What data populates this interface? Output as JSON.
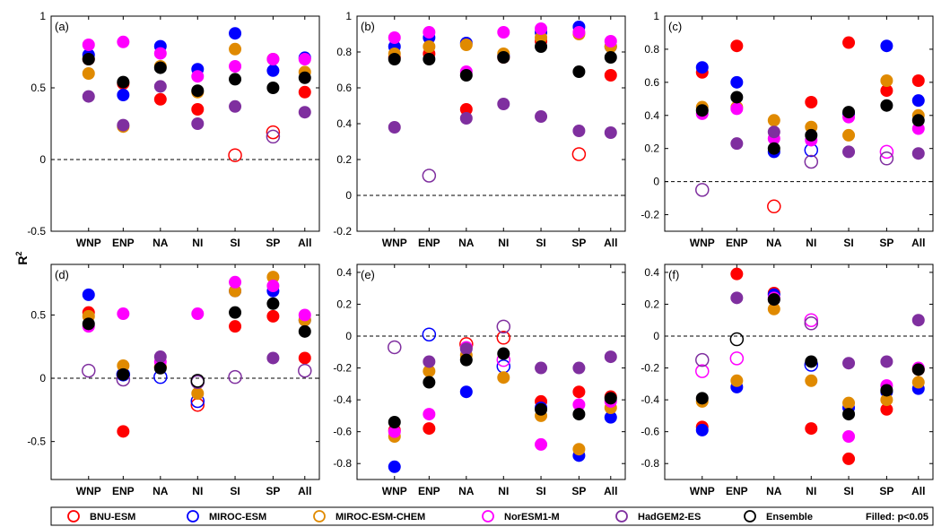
{
  "ylabel": "R",
  "ylabel_sup": "2",
  "legend": {
    "entries": [
      {
        "name": "BNU-ESM",
        "color": "#ff0000"
      },
      {
        "name": "MIROC-ESM",
        "color": "#0000ff"
      },
      {
        "name": "MIROC-ESM-CHEM",
        "color": "#e08a00"
      },
      {
        "name": "NorESM1-M",
        "color": "#ff00ff"
      },
      {
        "name": "HadGEM2-ES",
        "color": "#7f2f9f"
      },
      {
        "name": "Ensemble",
        "color": "#000000"
      }
    ],
    "note": "Filled: p<0.05",
    "placement": "bottom"
  },
  "chart_data": [
    {
      "panel": "(a)",
      "type": "scatter",
      "categories": [
        "WNP",
        "ENP",
        "NA",
        "NI",
        "SI",
        "SP",
        "All"
      ],
      "ylim": [
        -0.5,
        1
      ],
      "yticks": [
        -0.5,
        0,
        0.5,
        1
      ],
      "ytick_labels": [
        "-0.5",
        "0",
        "0.5",
        "1"
      ],
      "zero_line": true,
      "series": [
        {
          "name": "BNU-ESM",
          "values": [
            0.7,
            0.53,
            0.42,
            0.35,
            0.03,
            0.19,
            0.47
          ],
          "filled": [
            true,
            true,
            true,
            true,
            false,
            false,
            true
          ]
        },
        {
          "name": "MIROC-ESM",
          "values": [
            0.73,
            0.45,
            0.79,
            0.63,
            0.88,
            0.62,
            0.71
          ],
          "filled": [
            true,
            true,
            true,
            true,
            true,
            true,
            true
          ]
        },
        {
          "name": "MIROC-ESM-CHEM",
          "values": [
            0.6,
            0.23,
            0.65,
            0.47,
            0.77,
            0.7,
            0.61
          ],
          "filled": [
            true,
            true,
            true,
            true,
            true,
            true,
            true
          ]
        },
        {
          "name": "NorESM1-M",
          "values": [
            0.8,
            0.82,
            0.74,
            0.58,
            0.65,
            0.7,
            0.7
          ],
          "filled": [
            true,
            true,
            true,
            true,
            true,
            true,
            true
          ]
        },
        {
          "name": "HadGEM2-ES",
          "values": [
            0.44,
            0.24,
            0.51,
            0.25,
            0.37,
            0.16,
            0.33
          ],
          "filled": [
            true,
            true,
            true,
            true,
            true,
            false,
            true
          ]
        },
        {
          "name": "Ensemble",
          "values": [
            0.7,
            0.54,
            0.64,
            0.48,
            0.56,
            0.5,
            0.57
          ],
          "filled": [
            true,
            true,
            true,
            true,
            true,
            true,
            true
          ]
        }
      ]
    },
    {
      "panel": "(b)",
      "type": "scatter",
      "categories": [
        "WNP",
        "ENP",
        "NA",
        "NI",
        "SI",
        "SP",
        "All"
      ],
      "ylim": [
        -0.2,
        1
      ],
      "yticks": [
        -0.2,
        0,
        0.2,
        0.4,
        0.6,
        0.8,
        1
      ],
      "ytick_labels": [
        "-0.2",
        "0",
        "0.2",
        "0.4",
        "0.6",
        "0.8",
        "1"
      ],
      "zero_line": true,
      "series": [
        {
          "name": "BNU-ESM",
          "values": [
            0.77,
            0.79,
            0.48,
            0.77,
            0.86,
            0.23,
            0.67
          ],
          "filled": [
            true,
            true,
            true,
            true,
            true,
            false,
            true
          ]
        },
        {
          "name": "MIROC-ESM",
          "values": [
            0.83,
            0.88,
            0.85,
            0.78,
            0.91,
            0.94,
            0.83
          ],
          "filled": [
            true,
            true,
            true,
            true,
            true,
            true,
            true
          ]
        },
        {
          "name": "MIROC-ESM-CHEM",
          "values": [
            0.79,
            0.83,
            0.84,
            0.79,
            0.88,
            0.9,
            0.83
          ],
          "filled": [
            true,
            true,
            true,
            true,
            true,
            true,
            true
          ]
        },
        {
          "name": "NorESM1-M",
          "values": [
            0.88,
            0.91,
            0.69,
            0.91,
            0.93,
            0.91,
            0.86
          ],
          "filled": [
            true,
            true,
            true,
            true,
            true,
            true,
            true
          ]
        },
        {
          "name": "HadGEM2-ES",
          "values": [
            0.38,
            0.11,
            0.43,
            0.51,
            0.44,
            0.36,
            0.35
          ],
          "filled": [
            true,
            false,
            true,
            true,
            true,
            true,
            true
          ]
        },
        {
          "name": "Ensemble",
          "values": [
            0.76,
            0.76,
            0.67,
            0.77,
            0.83,
            0.69,
            0.77
          ],
          "filled": [
            true,
            true,
            true,
            true,
            true,
            true,
            true
          ]
        }
      ]
    },
    {
      "panel": "(c)",
      "type": "scatter",
      "categories": [
        "WNP",
        "ENP",
        "NA",
        "NI",
        "SI",
        "SP",
        "All"
      ],
      "ylim": [
        -0.3,
        1
      ],
      "yticks": [
        -0.2,
        0,
        0.2,
        0.4,
        0.6,
        0.8,
        1
      ],
      "ytick_labels": [
        "-0.2",
        "0",
        "0.2",
        "0.4",
        "0.6",
        "0.8",
        "1"
      ],
      "zero_line": true,
      "series": [
        {
          "name": "BNU-ESM",
          "values": [
            0.66,
            0.82,
            -0.15,
            0.48,
            0.84,
            0.55,
            0.61
          ],
          "filled": [
            true,
            true,
            false,
            true,
            true,
            true,
            true
          ]
        },
        {
          "name": "MIROC-ESM",
          "values": [
            0.69,
            0.6,
            0.18,
            0.19,
            0.41,
            0.82,
            0.49
          ],
          "filled": [
            true,
            true,
            true,
            false,
            true,
            true,
            true
          ]
        },
        {
          "name": "MIROC-ESM-CHEM",
          "values": [
            0.45,
            0.45,
            0.37,
            0.33,
            0.28,
            0.61,
            0.4
          ],
          "filled": [
            true,
            true,
            true,
            true,
            true,
            true,
            true
          ]
        },
        {
          "name": "NorESM1-M",
          "values": [
            0.41,
            0.44,
            0.26,
            0.25,
            0.39,
            0.18,
            0.32
          ],
          "filled": [
            true,
            true,
            true,
            true,
            true,
            false,
            true
          ]
        },
        {
          "name": "HadGEM2-ES",
          "values": [
            -0.05,
            0.23,
            0.3,
            0.12,
            0.18,
            0.14,
            0.17
          ],
          "filled": [
            false,
            true,
            true,
            false,
            true,
            false,
            true
          ]
        },
        {
          "name": "Ensemble",
          "values": [
            0.43,
            0.51,
            0.2,
            0.28,
            0.42,
            0.46,
            0.37
          ],
          "filled": [
            true,
            true,
            true,
            true,
            true,
            true,
            true
          ]
        }
      ]
    },
    {
      "panel": "(d)",
      "type": "scatter",
      "categories": [
        "WNP",
        "ENP",
        "NA",
        "NI",
        "SI",
        "SP",
        "All"
      ],
      "ylim": [
        -0.8,
        0.9
      ],
      "yticks": [
        -0.5,
        0,
        0.5
      ],
      "ytick_labels": [
        "-0.5",
        "0",
        "0.5"
      ],
      "zero_line": true,
      "series": [
        {
          "name": "BNU-ESM",
          "values": [
            0.52,
            -0.42,
            0.09,
            -0.21,
            0.41,
            0.49,
            0.16
          ],
          "filled": [
            true,
            true,
            true,
            false,
            true,
            true,
            true
          ]
        },
        {
          "name": "MIROC-ESM",
          "values": [
            0.66,
            0.03,
            0.01,
            -0.18,
            0.69,
            0.69,
            0.46
          ],
          "filled": [
            true,
            false,
            false,
            false,
            true,
            true,
            true
          ]
        },
        {
          "name": "MIROC-ESM-CHEM",
          "values": [
            0.49,
            0.1,
            0.09,
            -0.12,
            0.69,
            0.8,
            0.46
          ],
          "filled": [
            true,
            true,
            true,
            true,
            true,
            true,
            true
          ]
        },
        {
          "name": "NorESM1-M",
          "values": [
            0.41,
            0.51,
            0.13,
            0.51,
            0.76,
            0.73,
            0.5
          ],
          "filled": [
            true,
            true,
            true,
            true,
            true,
            true,
            true
          ]
        },
        {
          "name": "HadGEM2-ES",
          "values": [
            0.06,
            -0.01,
            0.17,
            -0.03,
            0.01,
            0.16,
            0.06
          ],
          "filled": [
            false,
            false,
            true,
            false,
            false,
            true,
            false
          ]
        },
        {
          "name": "Ensemble",
          "values": [
            0.43,
            0.03,
            0.08,
            -0.02,
            0.52,
            0.59,
            0.37
          ],
          "filled": [
            true,
            true,
            true,
            false,
            true,
            true,
            true
          ]
        }
      ]
    },
    {
      "panel": "(e)",
      "type": "scatter",
      "categories": [
        "WNP",
        "ENP",
        "NA",
        "NI",
        "SI",
        "SP",
        "All"
      ],
      "ylim": [
        -0.9,
        0.45
      ],
      "yticks": [
        -0.8,
        -0.6,
        -0.4,
        -0.2,
        0,
        0.2,
        0.4
      ],
      "ytick_labels": [
        "-0.8",
        "-0.6",
        "-0.4",
        "-0.2",
        "0",
        "0.2",
        "0.4"
      ],
      "zero_line": true,
      "series": [
        {
          "name": "BNU-ESM",
          "values": [
            -0.59,
            -0.58,
            -0.05,
            -0.01,
            -0.41,
            -0.35,
            -0.38
          ],
          "filled": [
            true,
            true,
            false,
            false,
            true,
            true,
            true
          ]
        },
        {
          "name": "MIROC-ESM",
          "values": [
            -0.82,
            0.01,
            -0.35,
            -0.19,
            -0.45,
            -0.75,
            -0.51
          ],
          "filled": [
            true,
            false,
            true,
            false,
            true,
            true,
            true
          ]
        },
        {
          "name": "MIROC-ESM-CHEM",
          "values": [
            -0.63,
            -0.22,
            -0.12,
            -0.26,
            -0.5,
            -0.71,
            -0.45
          ],
          "filled": [
            true,
            true,
            true,
            true,
            true,
            true,
            true
          ]
        },
        {
          "name": "NorESM1-M",
          "values": [
            -0.6,
            -0.49,
            -0.07,
            -0.15,
            -0.68,
            -0.43,
            -0.41
          ],
          "filled": [
            true,
            true,
            true,
            false,
            true,
            true,
            true
          ]
        },
        {
          "name": "HadGEM2-ES",
          "values": [
            -0.07,
            -0.16,
            -0.08,
            0.06,
            -0.2,
            -0.2,
            -0.13
          ],
          "filled": [
            false,
            true,
            true,
            false,
            true,
            true,
            true
          ]
        },
        {
          "name": "Ensemble",
          "values": [
            -0.54,
            -0.29,
            -0.15,
            -0.11,
            -0.46,
            -0.49,
            -0.39
          ],
          "filled": [
            true,
            true,
            true,
            true,
            true,
            true,
            true
          ]
        }
      ]
    },
    {
      "panel": "(f)",
      "type": "scatter",
      "categories": [
        "WNP",
        "ENP",
        "NA",
        "NI",
        "SI",
        "SP",
        "All"
      ],
      "ylim": [
        -0.9,
        0.45
      ],
      "yticks": [
        -0.8,
        -0.6,
        -0.4,
        -0.2,
        0,
        0.2,
        0.4
      ],
      "ytick_labels": [
        "-0.8",
        "-0.6",
        "-0.4",
        "-0.2",
        "0",
        "0.2",
        "0.4"
      ],
      "zero_line": true,
      "series": [
        {
          "name": "BNU-ESM",
          "values": [
            -0.57,
            0.39,
            0.27,
            -0.58,
            -0.77,
            -0.46,
            -0.21
          ],
          "filled": [
            true,
            true,
            true,
            true,
            true,
            true,
            true
          ]
        },
        {
          "name": "MIROC-ESM",
          "values": [
            -0.59,
            -0.32,
            0.26,
            -0.18,
            -0.45,
            -0.35,
            -0.33
          ],
          "filled": [
            true,
            true,
            true,
            false,
            true,
            true,
            true
          ]
        },
        {
          "name": "MIROC-ESM-CHEM",
          "values": [
            -0.41,
            -0.28,
            0.17,
            -0.28,
            -0.42,
            -0.4,
            -0.29
          ],
          "filled": [
            true,
            true,
            true,
            true,
            true,
            true,
            true
          ]
        },
        {
          "name": "NorESM1-M",
          "values": [
            -0.22,
            -0.14,
            0.24,
            0.1,
            -0.63,
            -0.31,
            -0.2
          ],
          "filled": [
            false,
            false,
            true,
            false,
            true,
            true,
            true
          ]
        },
        {
          "name": "HadGEM2-ES",
          "values": [
            -0.15,
            0.24,
            0.23,
            0.08,
            -0.17,
            -0.16,
            0.1
          ],
          "filled": [
            false,
            true,
            true,
            false,
            true,
            true,
            true
          ]
        },
        {
          "name": "Ensemble",
          "values": [
            -0.39,
            -0.02,
            0.23,
            -0.16,
            -0.49,
            -0.34,
            -0.21
          ],
          "filled": [
            true,
            false,
            true,
            true,
            true,
            true,
            true
          ]
        }
      ]
    }
  ]
}
